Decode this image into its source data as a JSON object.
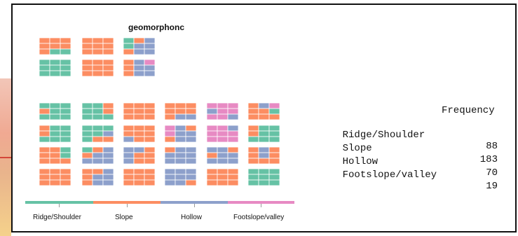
{
  "colors": {
    "ridge": "#66c2a5",
    "slope": "#fc8d62",
    "hollow": "#8da0cb",
    "foot": "#e78ac3"
  },
  "chart_data": {
    "type": "table",
    "title": "geomorphonc",
    "legend": [
      "Ridge/Shoulder",
      "Slope",
      "Hollow",
      "Footslope/valley"
    ],
    "table": {
      "header": "Frequency",
      "rows": [
        {
          "label": "Ridge/Shoulder",
          "value": 88
        },
        {
          "label": "Slope",
          "value": 183
        },
        {
          "label": "Hollow",
          "value": 70
        },
        {
          "label": "Footslope/valley",
          "value": 19
        }
      ]
    }
  }
}
